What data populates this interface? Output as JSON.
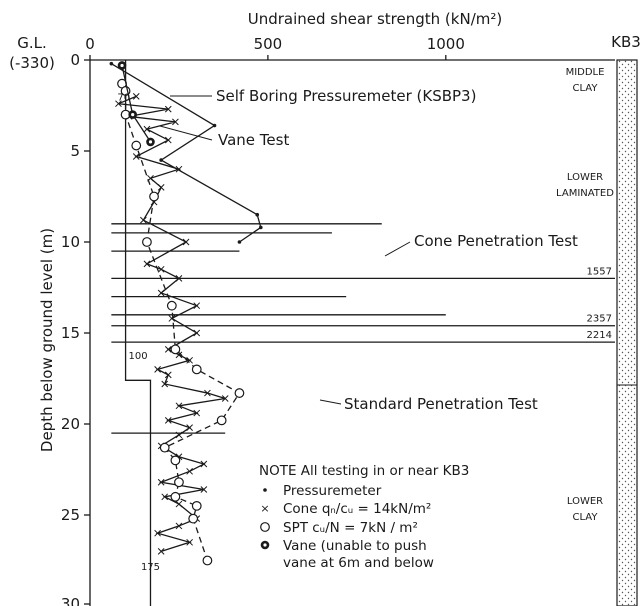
{
  "chart_data": {
    "type": "scatter",
    "title": "",
    "xlabel": "Undrained shear strength (kN/m²)",
    "ylabel": "Depth below ground level (m)",
    "xlim": [
      0,
      1500
    ],
    "ylim": [
      30,
      0
    ],
    "y_inverted": true,
    "x_ticks": [
      "0",
      "500",
      "1000"
    ],
    "y_ticks": [
      "0",
      "5",
      "10",
      "15",
      "20",
      "25",
      "30"
    ],
    "ground_level_label": [
      "G.L.",
      "(-330)"
    ],
    "borehole_label": "KB3",
    "strata": [
      {
        "label_lines": [
          "MIDDLE",
          "CLAY"
        ],
        "from_depth": 0,
        "to_depth": 3
      },
      {
        "label_lines": [
          "LOWER",
          "LAMINATED"
        ],
        "from_depth": 3,
        "to_depth": 18
      },
      {
        "label_lines": [
          "LOWER",
          "CLAY"
        ],
        "from_depth": 18,
        "to_depth": 30
      }
    ],
    "series": [
      {
        "name": "Pressuremeter",
        "marker": "dot",
        "line": "solid",
        "x": [
          60,
          350,
          200,
          470,
          480,
          420
        ],
        "y": [
          0.2,
          3.6,
          5.5,
          8.5,
          9.2,
          10.0
        ]
      },
      {
        "name": "Cone q_c/c_u = 14 kN/m²",
        "marker": "cross",
        "line": "solid",
        "x": [
          130,
          80,
          220,
          110,
          240,
          160,
          220,
          130,
          250,
          170,
          200,
          180,
          150,
          270,
          160,
          200,
          250,
          200,
          300,
          230,
          300,
          220,
          250,
          280,
          190,
          220,
          210,
          330,
          380,
          250,
          300,
          220,
          280,
          250,
          200,
          250,
          320,
          280,
          200,
          320,
          210,
          250,
          300,
          250,
          190,
          280,
          200
        ],
        "y": [
          2.0,
          2.4,
          2.7,
          3.1,
          3.4,
          3.8,
          4.4,
          5.3,
          6.0,
          6.5,
          7.0,
          7.8,
          8.8,
          10.0,
          11.2,
          11.5,
          12.0,
          12.8,
          13.5,
          14.2,
          15.0,
          15.9,
          16.2,
          16.5,
          17.0,
          17.3,
          17.8,
          18.3,
          18.6,
          19.0,
          19.4,
          19.8,
          20.2,
          20.6,
          21.2,
          21.8,
          22.2,
          22.6,
          23.2,
          23.6,
          24.0,
          24.4,
          25.2,
          25.6,
          26.0,
          26.5,
          27.0
        ]
      },
      {
        "name": "SPT c_u/N = 7 kN/m²",
        "marker": "circle",
        "line": "dashed",
        "x": [
          90,
          100,
          100,
          130,
          180,
          160,
          230,
          240,
          300,
          420,
          370,
          210,
          240,
          250,
          240,
          300,
          290,
          330
        ],
        "y": [
          1.3,
          1.7,
          3.0,
          4.7,
          7.5,
          10.0,
          13.5,
          15.9,
          17.0,
          18.3,
          19.8,
          21.3,
          22.0,
          23.2,
          24.0,
          24.5,
          25.2,
          27.5
        ]
      },
      {
        "name": "Vane (unable to push vane at 6m and below)",
        "marker": "filled-circle",
        "line": "solid",
        "x": [
          90,
          120,
          170
        ],
        "y": [
          0.3,
          3.0,
          4.5
        ]
      }
    ],
    "cone_peak_lines": [
      {
        "depth": 9.0,
        "x_end": 820
      },
      {
        "depth": 9.5,
        "x_end": 680
      },
      {
        "depth": 10.5,
        "x_end": 420
      },
      {
        "depth": 12.0,
        "x_end": 1557,
        "label": "1557"
      },
      {
        "depth": 13.0,
        "x_end": 720
      },
      {
        "depth": 14.0,
        "x_end": 1000
      },
      {
        "depth": 14.6,
        "x_end": 2357,
        "label": "2357"
      },
      {
        "depth": 15.5,
        "x_end": 2214,
        "label": "2214"
      },
      {
        "depth": 20.5,
        "x_end": 380
      }
    ],
    "cutoff_line": {
      "x": [
        100,
        100,
        170,
        170
      ],
      "y": [
        0,
        17.6,
        17.6,
        30
      ]
    },
    "plot_labels": [
      {
        "text": "70",
        "x": 95,
        "y": 2.0
      },
      {
        "text": "100",
        "x": 135,
        "y": 16.2
      },
      {
        "text": "175",
        "x": 170,
        "y": 27.8
      }
    ],
    "annotations": [
      "Self Boring Pressuremeter (KSBP3)",
      "Vane Test",
      "Cone Penetration Test",
      "Standard Penetration Test"
    ],
    "note": {
      "title": "NOTE  All testing in or near KB3",
      "entries": [
        {
          "symbol": "dot",
          "text": "Pressuremeter"
        },
        {
          "symbol": "cross",
          "text": "Cone qₙ/cᵤ = 14kN/m²"
        },
        {
          "symbol": "circle",
          "text": "SPT cᵤ/N = 7kN / m²"
        },
        {
          "symbol": "filled-circle",
          "text": "Vane (unable to push"
        },
        {
          "symbol": "",
          "text": "vane at 6m and below"
        }
      ]
    }
  }
}
